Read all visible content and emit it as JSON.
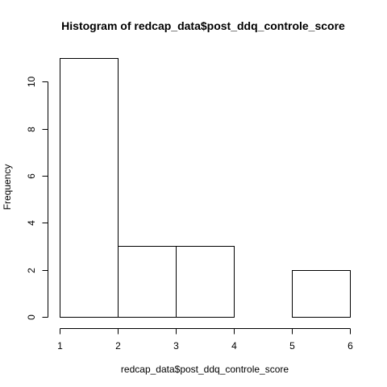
{
  "chart_data": {
    "type": "bar",
    "title": "Histogram of redcap_data$post_ddq_controle_score",
    "xlabel": "redcap_data$post_ddq_controle_score",
    "ylabel": "Frequency",
    "bins": [
      {
        "start": 1,
        "end": 2,
        "count": 11
      },
      {
        "start": 2,
        "end": 3,
        "count": 3
      },
      {
        "start": 3,
        "end": 4,
        "count": 3
      },
      {
        "start": 4,
        "end": 5,
        "count": 0
      },
      {
        "start": 5,
        "end": 6,
        "count": 2
      }
    ],
    "xlim": [
      1,
      6
    ],
    "ylim": [
      0,
      11
    ],
    "xticks": [
      "1",
      "2",
      "3",
      "4",
      "5",
      "6"
    ],
    "yticks": [
      "0",
      "2",
      "4",
      "6",
      "8",
      "10"
    ],
    "grid": false,
    "legend": "none",
    "colors": {
      "bar_fill": "#ffffff",
      "bar_stroke": "#000000",
      "background": "#ffffff"
    }
  }
}
